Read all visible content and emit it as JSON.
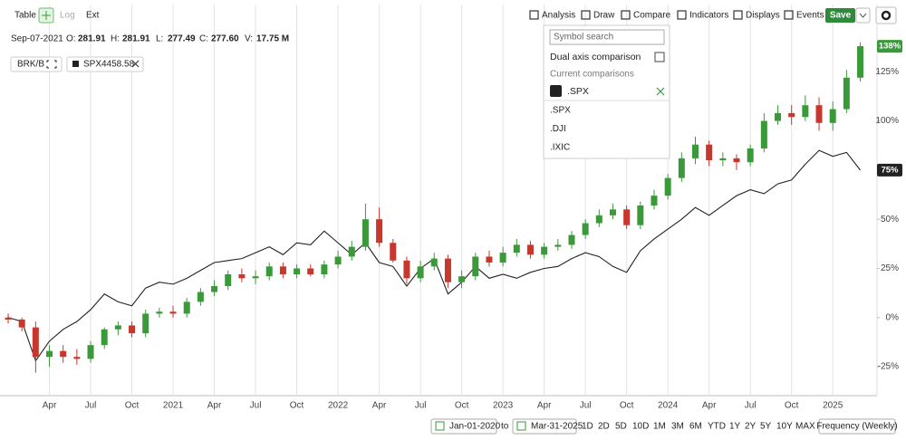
{
  "toolbar": {
    "left": [
      "Table",
      "Log",
      "Ext"
    ],
    "right": [
      "Analysis",
      "Draw",
      "Compare",
      "Indicators",
      "Displays",
      "Events"
    ],
    "save": "Save"
  },
  "info": {
    "date": "Sep-07-2021",
    "fields": [
      {
        "label": "O:",
        "value": "281.91"
      },
      {
        "label": "H:",
        "value": "281.91"
      },
      {
        "label": "L:",
        "value": "277.49"
      },
      {
        "label": "C:",
        "value": "277.60"
      },
      {
        "label": "V:",
        "value": "17.75 M"
      }
    ]
  },
  "legend": {
    "spx_price": "4458.58"
  },
  "compare_menu": {
    "search_placeholder": "Symbol search",
    "dual_axis": "Dual axis comparison",
    "current_heading": "Current comparisons",
    "current": [
      ".SPX"
    ],
    "suggestions": [
      ".SPX",
      ".DJI",
      ".IXIC"
    ]
  },
  "range": {
    "from": "Jan-01-2020",
    "to_word": "to",
    "to": "Mar-31-2025",
    "periods": [
      "1D",
      "2D",
      "5D",
      "10D",
      "1M",
      "3M",
      "6M",
      "YTD",
      "1Y",
      "2Y",
      "5Y",
      "10Y",
      "MAX"
    ],
    "frequency": "Frequency (Weekly)"
  },
  "chart_data": {
    "type": "candlestick",
    "categories": [
      null,
      null,
      null,
      "Apr",
      null,
      null,
      "Jul",
      null,
      null,
      "Oct",
      null,
      null,
      "2021",
      null,
      null,
      "Apr",
      null,
      null,
      "Jul",
      null,
      null,
      "Oct",
      null,
      null,
      "2022",
      null,
      null,
      "Apr",
      null,
      null,
      "Jul",
      null,
      null,
      "Oct",
      null,
      null,
      "2023",
      null,
      null,
      "Apr",
      null,
      null,
      "Jul",
      null,
      null,
      "Oct",
      null,
      null,
      "2024",
      null,
      null,
      "Apr",
      null,
      null,
      "Jul",
      null,
      null,
      "Oct",
      null,
      null,
      "2025",
      null,
      null
    ],
    "series": [
      {
        "name": "BRK/B",
        "type": "candlestick",
        "up_color": "#3a9a3a",
        "down_color": "#c8372d",
        "open": [
          0,
          -1,
          -5,
          -20,
          -17,
          -20,
          -21,
          -14,
          -6,
          -4,
          -8,
          2,
          3,
          2,
          8,
          13,
          16,
          22,
          20,
          21,
          26,
          22,
          25,
          22,
          27,
          31,
          36,
          50,
          38,
          29,
          20,
          26,
          30,
          18,
          21,
          31,
          28,
          33,
          37,
          32,
          36,
          37,
          42,
          48,
          52,
          55,
          47,
          57,
          62,
          71,
          81,
          88,
          80,
          81,
          79,
          86,
          100,
          104,
          102,
          108,
          99,
          106,
          122
        ],
        "high": [
          2,
          0,
          -2,
          -14,
          -14,
          -16,
          -12,
          -5,
          -2,
          -2,
          4,
          5,
          6,
          10,
          15,
          19,
          24,
          25,
          24,
          28,
          28,
          27,
          27,
          29,
          34,
          39,
          58,
          56,
          40,
          31,
          29,
          33,
          32,
          24,
          33,
          34,
          36,
          40,
          39,
          38,
          40,
          44,
          50,
          55,
          58,
          57,
          59,
          65,
          73,
          84,
          92,
          90,
          84,
          83,
          88,
          104,
          108,
          108,
          113,
          112,
          110,
          126,
          140
        ],
        "low": [
          -3,
          -7,
          -28,
          -25,
          -23,
          -24,
          -23,
          -16,
          -9,
          -10,
          -10,
          0,
          0,
          0,
          6,
          11,
          14,
          18,
          17,
          19,
          20,
          20,
          21,
          20,
          25,
          29,
          34,
          36,
          28,
          17,
          18,
          24,
          15,
          15,
          19,
          26,
          26,
          31,
          30,
          30,
          34,
          35,
          40,
          46,
          50,
          45,
          45,
          55,
          60,
          69,
          78,
          77,
          77,
          75,
          77,
          84,
          98,
          98,
          100,
          95,
          95,
          104,
          120
        ],
        "close": [
          -1,
          -5,
          -20,
          -17,
          -20,
          -21,
          -14,
          -6,
          -4,
          -8,
          2,
          3,
          2,
          8,
          13,
          16,
          22,
          20,
          21,
          26,
          22,
          25,
          22,
          27,
          31,
          36,
          50,
          38,
          29,
          20,
          26,
          30,
          18,
          21,
          31,
          28,
          33,
          37,
          32,
          36,
          37,
          42,
          48,
          52,
          55,
          47,
          57,
          62,
          71,
          81,
          88,
          80,
          81,
          79,
          86,
          100,
          104,
          102,
          108,
          99,
          106,
          122,
          138
        ],
        "badge": {
          "value": 138,
          "label": "138%"
        },
        "badge_color": "#3a9a3a"
      },
      {
        "name": "SPX",
        "type": "line",
        "color": "#222222",
        "values": [
          0,
          -2,
          -22,
          -12,
          -6,
          -2,
          4,
          12,
          8,
          6,
          15,
          18,
          17,
          20,
          24,
          28,
          29,
          30,
          33,
          36,
          32,
          38,
          37,
          44,
          38,
          32,
          38,
          28,
          26,
          16,
          25,
          30,
          12,
          18,
          26,
          20,
          22,
          20,
          23,
          25,
          26,
          30,
          33,
          31,
          26,
          23,
          34,
          40,
          45,
          50,
          56,
          52,
          57,
          62,
          65,
          63,
          68,
          70,
          78,
          85,
          82,
          84,
          75
        ],
        "badge": {
          "value": 75,
          "label": "75%"
        },
        "badge_color": "#222222"
      }
    ],
    "ylim": [
      -39.7,
      147.7
    ],
    "yticks": [
      {
        "value": -25,
        "label": "-25%"
      },
      {
        "value": 0,
        "label": "0%"
      },
      {
        "value": 25,
        "label": "25%"
      },
      {
        "value": 50,
        "label": "50%"
      },
      {
        "value": 75,
        "label": "75%"
      },
      {
        "value": 100,
        "label": "100%"
      },
      {
        "value": 125,
        "label": "125%"
      }
    ],
    "xgrid": true,
    "ygrid": false
  }
}
